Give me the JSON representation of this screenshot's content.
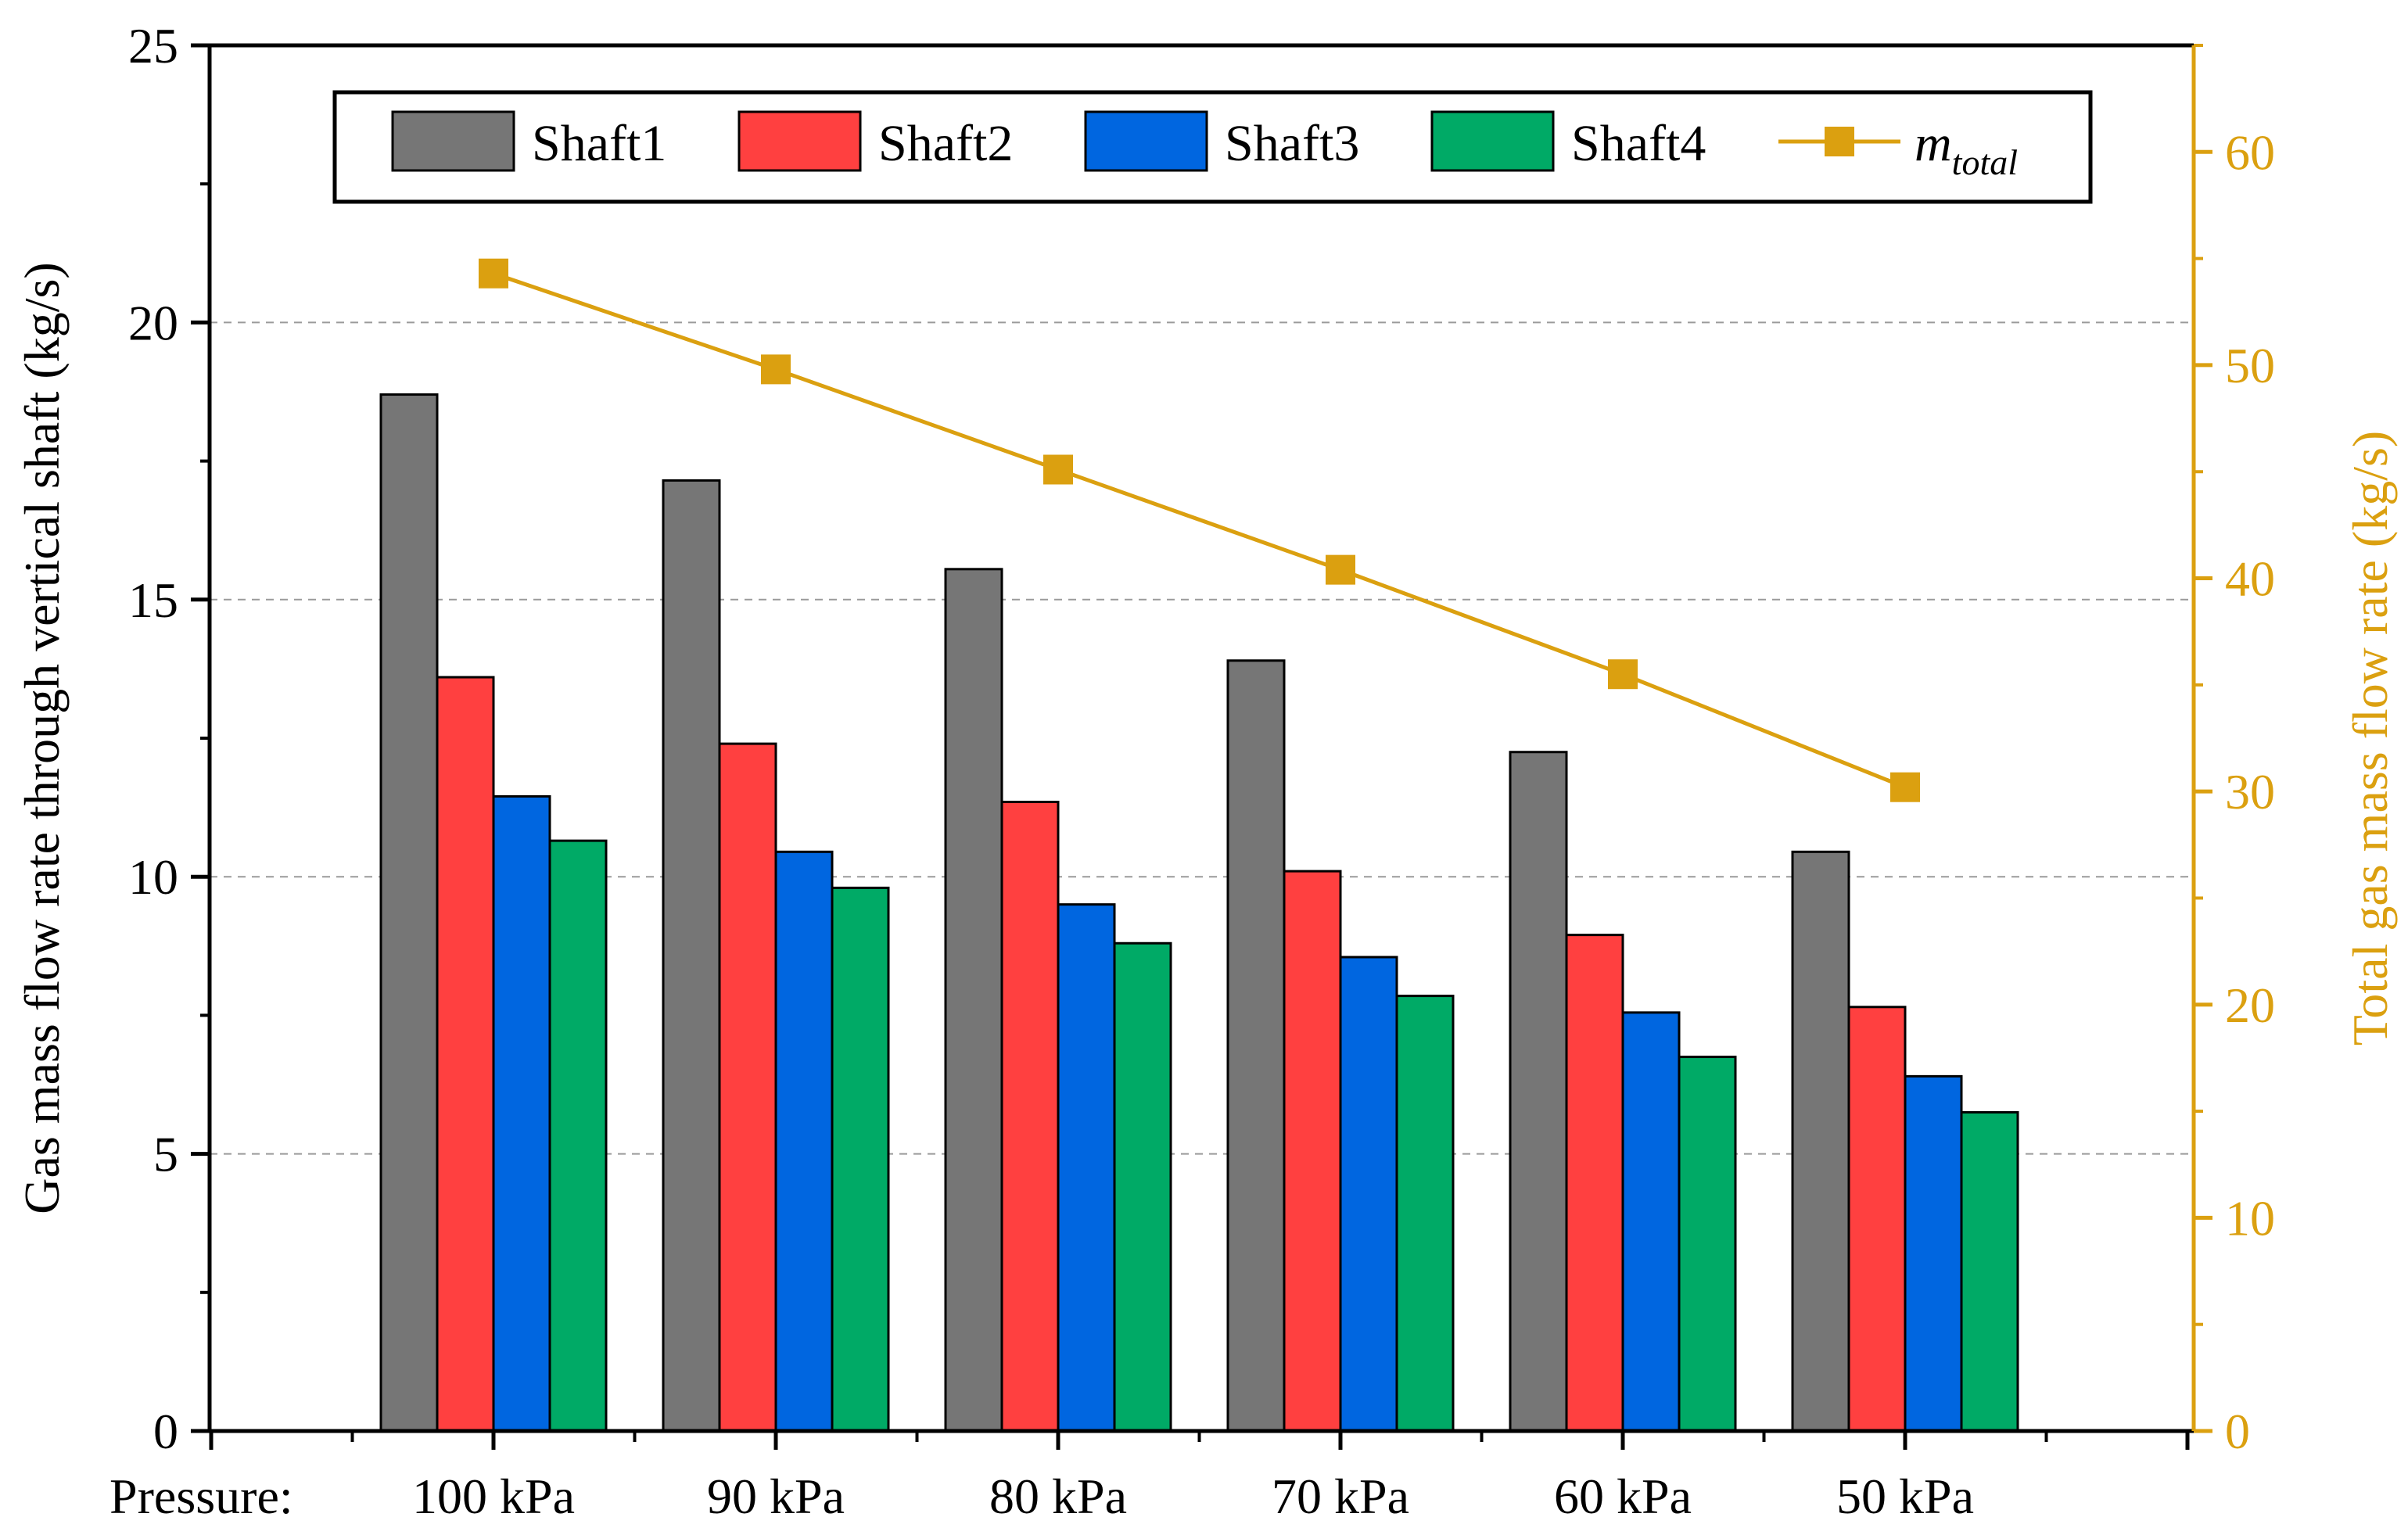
{
  "chart_data": {
    "type": "bar",
    "x_prefix": "Pressure:",
    "categories": [
      "100 kPa",
      "90 kPa",
      "80 kPa",
      "70 kPa",
      "60 kPa",
      "50 kPa"
    ],
    "series": [
      {
        "name": "Shaft1",
        "color": "#767676",
        "values": [
          18.7,
          17.15,
          15.55,
          13.9,
          12.25,
          10.45
        ]
      },
      {
        "name": "Shaft2",
        "color": "#ff4040",
        "values": [
          13.6,
          12.4,
          11.35,
          10.1,
          8.95,
          7.65
        ]
      },
      {
        "name": "Shaft3",
        "color": "#0066e0",
        "values": [
          11.45,
          10.45,
          9.5,
          8.55,
          7.55,
          6.4
        ]
      },
      {
        "name": "Shaft4",
        "color": "#00aa66",
        "values": [
          10.65,
          9.8,
          8.8,
          7.85,
          6.75,
          5.75
        ]
      }
    ],
    "line_series": {
      "name_main": "m",
      "name_sub": "total",
      "color": "#dba010",
      "values": [
        54.3,
        49.8,
        45.1,
        40.4,
        35.5,
        30.2
      ]
    },
    "ylabel": "Gas mass flow rate through vertical shaft (kg/s)",
    "ylabel_right": "Total gas mass flow rate (kg/s)",
    "ylim": [
      0,
      25
    ],
    "ylim_right": [
      0,
      65
    ],
    "yticks": [
      0,
      5,
      10,
      15,
      20,
      25
    ],
    "yticks_right": [
      0,
      10,
      20,
      30,
      40,
      50,
      60
    ],
    "grid_values": [
      5,
      10,
      15,
      20
    ],
    "legend_position": "top"
  }
}
